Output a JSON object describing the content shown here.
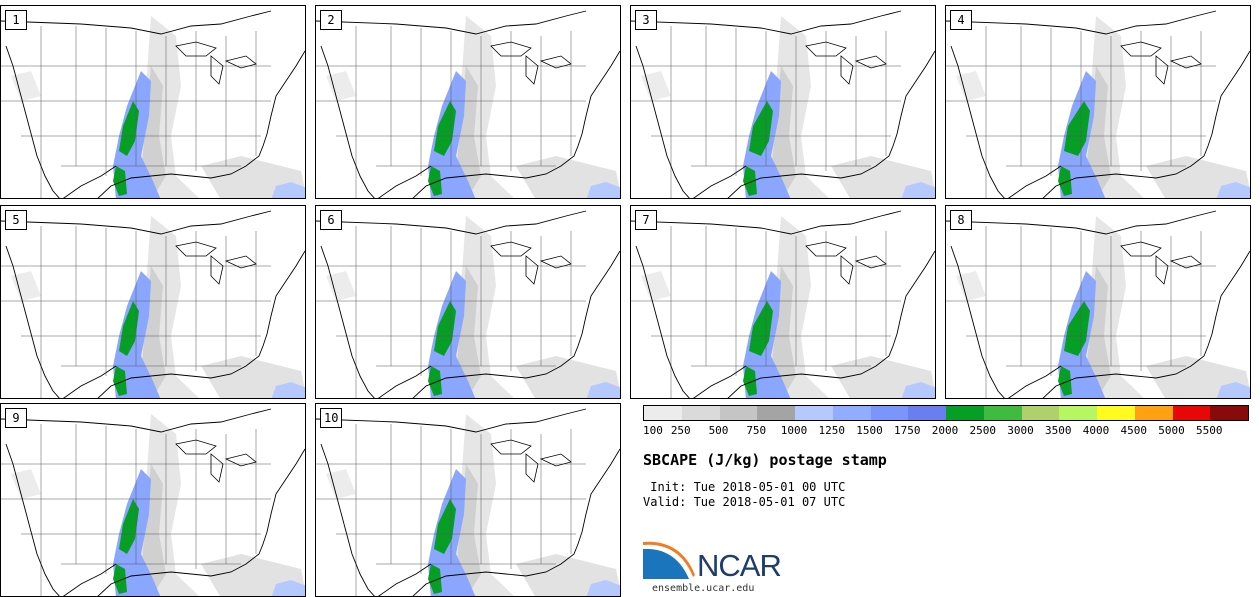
{
  "members": [
    "1",
    "2",
    "3",
    "4",
    "5",
    "6",
    "7",
    "8",
    "9",
    "10"
  ],
  "colorbar": {
    "colors": [
      "#ececec",
      "#dadada",
      "#c5c5c5",
      "#a4a4a4",
      "#b6c9ff",
      "#90adff",
      "#7a95fb",
      "#6a7fef",
      "#079e26",
      "#3fbb3f",
      "#afd06a",
      "#b8f562",
      "#fffb20",
      "#ffa111",
      "#e80707",
      "#890a0a"
    ],
    "ticks": [
      "100",
      "250",
      "500",
      "750",
      "1000",
      "1250",
      "1500",
      "1750",
      "2000",
      "2500",
      "3000",
      "3500",
      "4000",
      "4500",
      "5000",
      "5500"
    ]
  },
  "title": "SBCAPE (J/kg) postage stamp",
  "init": " Init: Tue 2018-05-01 00 UTC",
  "valid": "Valid: Tue 2018-05-01 07 UTC",
  "logo": {
    "name": "NCAR",
    "url": "ensemble.ucar.edu"
  }
}
